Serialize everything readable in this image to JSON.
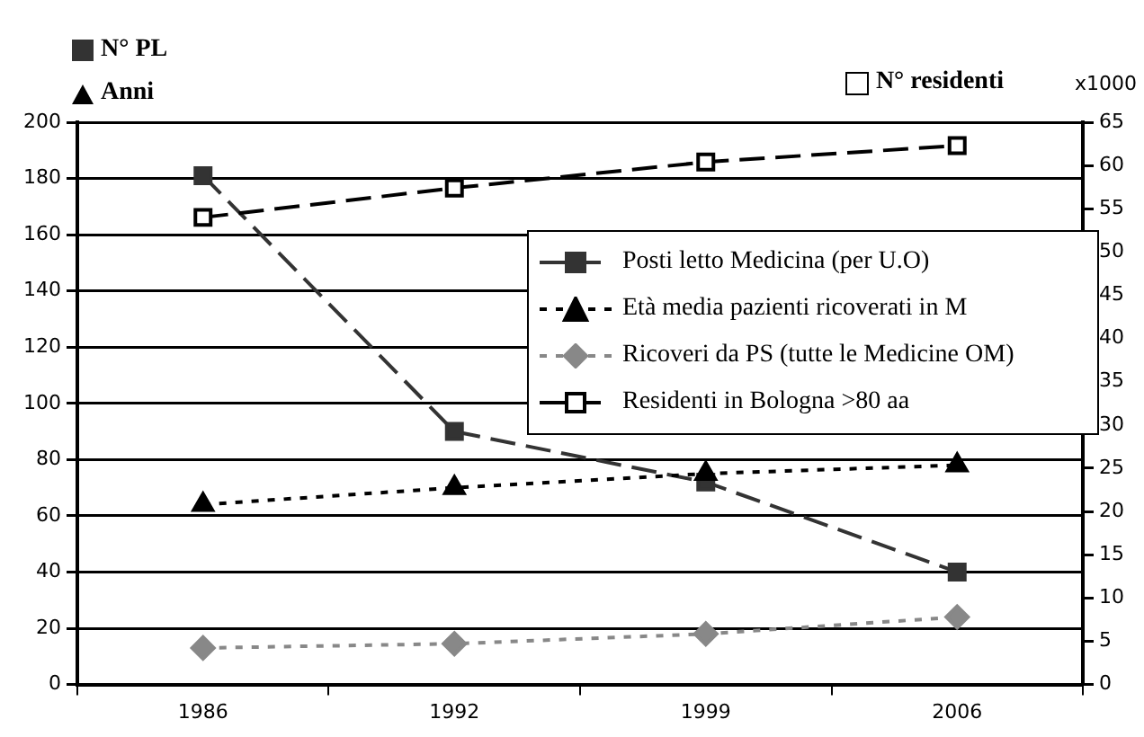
{
  "chart_data": {
    "type": "line",
    "categories": [
      "1986",
      "1992",
      "1999",
      "2006"
    ],
    "series": [
      {
        "name": "Posti letto Medicina (per U.O)",
        "color": "#333333",
        "values": [
          181,
          90,
          72,
          40
        ],
        "marker": "square",
        "line_style": "dashed"
      },
      {
        "name": "Età media pazienti ricoverati in M",
        "color": "#000000",
        "values": [
          64,
          70,
          75,
          78
        ],
        "marker": "triangle",
        "line_style": "dotted"
      },
      {
        "name": "Ricoveri da PS (tutte le Medicine OM)",
        "color": "#888888",
        "values": [
          13,
          14.5,
          18,
          24
        ],
        "marker": "diamond",
        "line_style": "dotted"
      },
      {
        "name": "Residenti in Bologna >80 aa",
        "color": "#000000",
        "values": [
          54,
          57.4,
          60.4,
          62.3
        ],
        "marker": "square",
        "line_style": "dashed",
        "axis": "y2"
      }
    ],
    "ylim": [
      0,
      200
    ],
    "yticks": [
      0,
      20,
      40,
      60,
      80,
      100,
      120,
      140,
      160,
      180,
      200
    ],
    "y2lim": [
      0,
      65
    ],
    "y2ticks": [
      0,
      5,
      10,
      15,
      20,
      25,
      30,
      35,
      40,
      45,
      50,
      55,
      60,
      65
    ],
    "grid": "y",
    "legend": "right",
    "annotations": [
      "N° PL",
      "Anni",
      "N° residenti",
      "x1000"
    ]
  }
}
